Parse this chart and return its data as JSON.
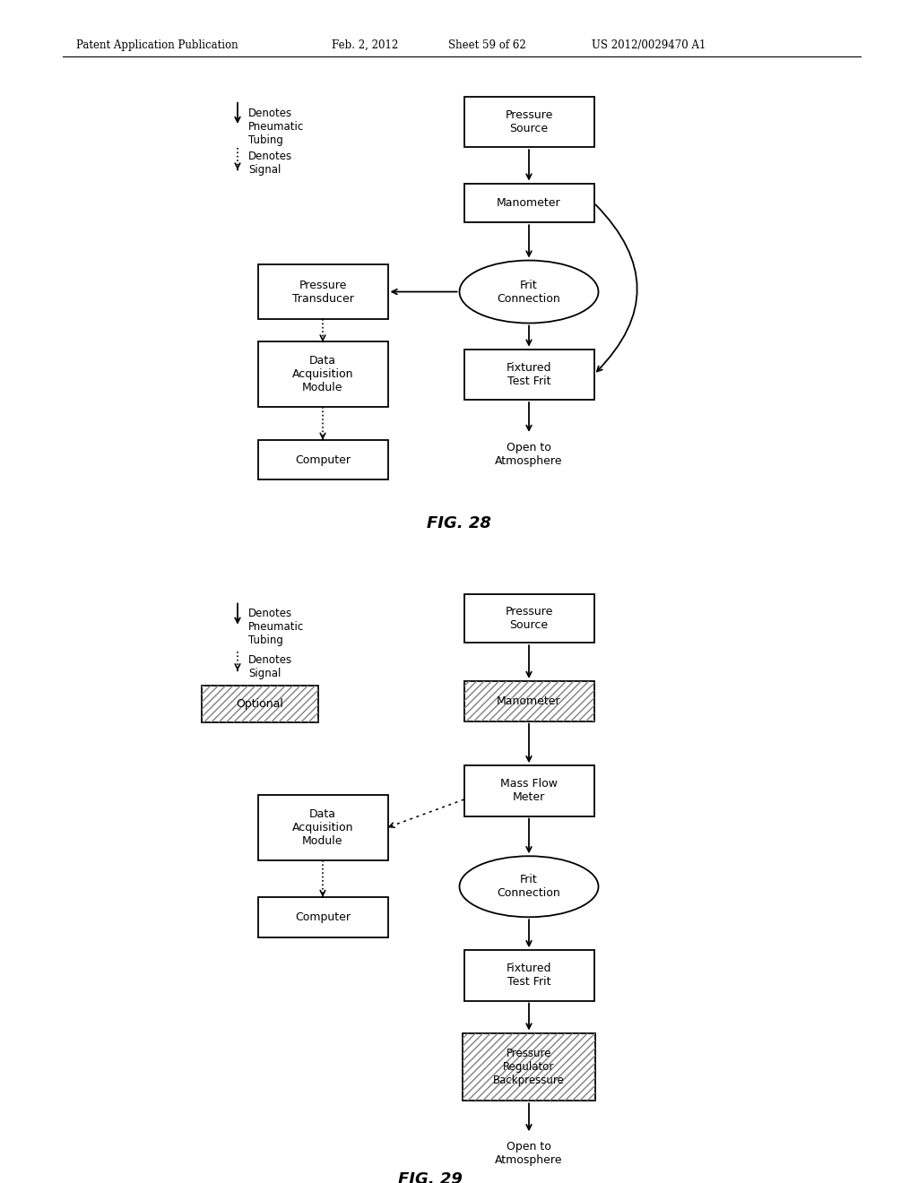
{
  "bg_color": "#ffffff",
  "header_line1": "Patent Application Publication",
  "header_line2": "Feb. 2, 2012",
  "header_line3": "Sheet 59 of 62",
  "header_line4": "US 2012/0029470 A1",
  "fig28_caption": "FIG. 28",
  "fig29_caption": "FIG. 29"
}
